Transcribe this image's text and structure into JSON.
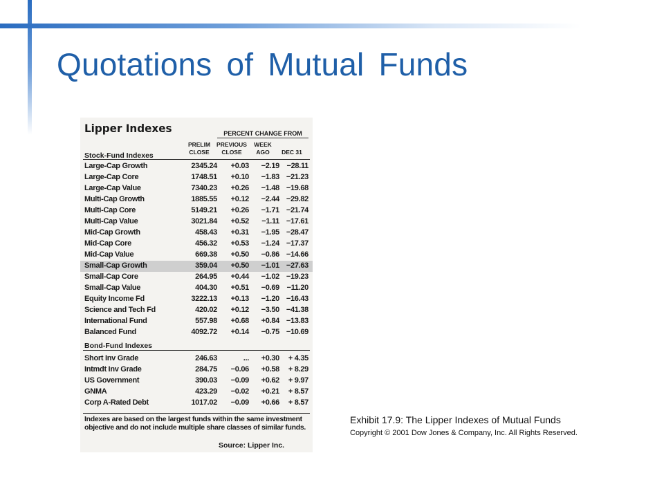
{
  "slide": {
    "title": "Quotations of Mutual Funds"
  },
  "exhibit": {
    "heading": "Lipper Indexes",
    "header_group": "PERCENT CHANGE FROM",
    "headers": {
      "prelim": "PRELIM\nCLOSE",
      "previous": "PREVIOUS\nCLOSE",
      "week": "WEEK\nAGO",
      "dec": "DEC 31"
    },
    "stock_section": "Stock-Fund Indexes",
    "stock_rows": [
      {
        "name": "Large-Cap Growth",
        "close": "2345.24",
        "prev": "+0.03",
        "week": "−2.19",
        "dec": "−28.11"
      },
      {
        "name": "Large-Cap Core",
        "close": "1748.51",
        "prev": "+0.10",
        "week": "−1.83",
        "dec": "−21.23"
      },
      {
        "name": "Large-Cap Value",
        "close": "7340.23",
        "prev": "+0.26",
        "week": "−1.48",
        "dec": "−19.68"
      },
      {
        "name": "Multi-Cap Growth",
        "close": "1885.55",
        "prev": "+0.12",
        "week": "−2.44",
        "dec": "−29.82"
      },
      {
        "name": "Multi-Cap Core",
        "close": "5149.21",
        "prev": "+0.26",
        "week": "−1.71",
        "dec": "−21.74"
      },
      {
        "name": "Multi-Cap Value",
        "close": "3021.84",
        "prev": "+0.52",
        "week": "−1.11",
        "dec": "−17.61"
      },
      {
        "name": "Mid-Cap Growth",
        "close": "458.43",
        "prev": "+0.31",
        "week": "−1.95",
        "dec": "−28.47"
      },
      {
        "name": "Mid-Cap Core",
        "close": "456.32",
        "prev": "+0.53",
        "week": "−1.24",
        "dec": "−17.37"
      },
      {
        "name": "Mid-Cap Value",
        "close": "669.38",
        "prev": "+0.50",
        "week": "−0.86",
        "dec": "−14.66"
      },
      {
        "name": "Small-Cap Growth",
        "close": "359.04",
        "prev": "+0.50",
        "week": "−1.01",
        "dec": "−27.63",
        "highlight": true
      },
      {
        "name": "Small-Cap Core",
        "close": "264.95",
        "prev": "+0.44",
        "week": "−1.02",
        "dec": "−19.23"
      },
      {
        "name": "Small-Cap Value",
        "close": "404.30",
        "prev": "+0.51",
        "week": "−0.69",
        "dec": "−11.20"
      },
      {
        "name": "Equity Income Fd",
        "close": "3222.13",
        "prev": "+0.13",
        "week": "−1.20",
        "dec": "−16.43"
      },
      {
        "name": "Science and Tech Fd",
        "close": "420.02",
        "prev": "+0.12",
        "week": "−3.50",
        "dec": "−41.38"
      },
      {
        "name": "International Fund",
        "close": "557.98",
        "prev": "+0.68",
        "week": "+0.84",
        "dec": "−13.83"
      },
      {
        "name": "Balanced Fund",
        "close": "4092.72",
        "prev": "+0.14",
        "week": "−0.75",
        "dec": "−10.69"
      }
    ],
    "bond_section": "Bond-Fund Indexes",
    "bond_rows": [
      {
        "name": "Short Inv Grade",
        "close": "246.63",
        "prev": "...",
        "week": "+0.30",
        "dec": "+ 4.35"
      },
      {
        "name": "Intmdt Inv Grade",
        "close": "284.75",
        "prev": "−0.06",
        "week": "+0.58",
        "dec": "+ 8.29"
      },
      {
        "name": "US Government",
        "close": "390.03",
        "prev": "−0.09",
        "week": "+0.62",
        "dec": "+ 9.97"
      },
      {
        "name": "GNMA",
        "close": "423.29",
        "prev": "−0.02",
        "week": "+0.21",
        "dec": "+ 8.57"
      },
      {
        "name": "Corp A-Rated Debt",
        "close": "1017.02",
        "prev": "−0.09",
        "week": "+0.66",
        "dec": "+ 8.57"
      }
    ],
    "footnote": "Indexes are based on the largest funds within the same investment objective and do not include multiple share classes of similar funds.",
    "source": "Source: Lipper Inc."
  },
  "caption": {
    "main": "Exhibit 17.9: The Lipper Indexes of Mutual Funds",
    "copyright": "Copyright © 2001 Dow Jones & Company, Inc. All Rights Reserved."
  }
}
